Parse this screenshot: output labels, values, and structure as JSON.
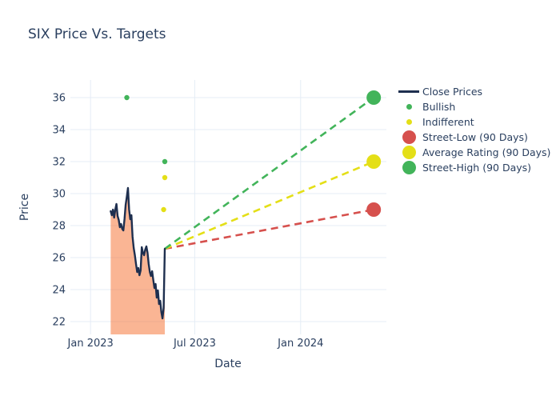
{
  "page": {
    "title": "SIX Price Vs. Targets"
  },
  "colors": {
    "text": "#2a3f5f",
    "grid": "#e5ecf6",
    "close_line": "#1e2f4f",
    "close_fill": "rgba(246,120,60,0.55)",
    "bullish_green": "#42b45a",
    "indifferent_yellow": "#e4df17",
    "street_low_red": "#d6504d",
    "background": "#ffffff"
  },
  "legend": {
    "items": [
      {
        "label": "Close Prices",
        "swatch": "line",
        "color": "#1e2f4f"
      },
      {
        "label": "Bullish",
        "swatch": "dot",
        "color": "#42b45a"
      },
      {
        "label": "Indifferent",
        "swatch": "dot",
        "color": "#e4df17"
      },
      {
        "label": "Street-Low (90 Days)",
        "swatch": "circle",
        "color": "#d6504d"
      },
      {
        "label": "Average Rating (90 Days)",
        "swatch": "circle",
        "color": "#e4df17"
      },
      {
        "label": "Street-High (90 Days)",
        "swatch": "circle",
        "color": "#42b45a"
      }
    ]
  },
  "chart_data": {
    "type": "line",
    "title": "SIX Price Vs. Targets",
    "xlabel": "Date",
    "ylabel": "Price",
    "xlim": [
      "2022-11-27",
      "2024-05-29"
    ],
    "ylim": [
      21.2,
      37.1
    ],
    "grid": true,
    "legend_position": "right",
    "xticks": [
      {
        "date": "2023-01-01",
        "label": "Jan 2023"
      },
      {
        "date": "2023-07-01",
        "label": "Jul 2023"
      },
      {
        "date": "2024-01-01",
        "label": "Jan 2024"
      }
    ],
    "yticks": [
      22,
      24,
      26,
      28,
      30,
      32,
      34,
      36
    ],
    "series": [
      {
        "name": "Close Prices",
        "type": "line",
        "color": "#1e2f4f",
        "fill": "tozeroy",
        "fill_color": "rgba(246,120,60,0.55)",
        "width": 2.4,
        "x": [
          "2023-02-05",
          "2023-02-07",
          "2023-02-09",
          "2023-02-11",
          "2023-02-13",
          "2023-02-15",
          "2023-02-17",
          "2023-02-19",
          "2023-02-21",
          "2023-02-23",
          "2023-02-25",
          "2023-02-27",
          "2023-03-01",
          "2023-03-03",
          "2023-03-05",
          "2023-03-07",
          "2023-03-09",
          "2023-03-11",
          "2023-03-13",
          "2023-03-15",
          "2023-03-17",
          "2023-03-19",
          "2023-03-21",
          "2023-03-23",
          "2023-03-25",
          "2023-03-27",
          "2023-03-29",
          "2023-03-31",
          "2023-04-02",
          "2023-04-04",
          "2023-04-06",
          "2023-04-08",
          "2023-04-10",
          "2023-04-12",
          "2023-04-14",
          "2023-04-16",
          "2023-04-18",
          "2023-04-20",
          "2023-04-22",
          "2023-04-24",
          "2023-04-26",
          "2023-04-28",
          "2023-04-30",
          "2023-05-02",
          "2023-05-04",
          "2023-05-06",
          "2023-05-08",
          "2023-05-10"
        ],
        "y": [
          28.9,
          28.65,
          29.0,
          28.5,
          29.0,
          29.35,
          28.6,
          28.35,
          27.9,
          28.1,
          27.8,
          27.7,
          28.4,
          29.3,
          29.8,
          30.35,
          29.0,
          28.4,
          28.65,
          27.3,
          26.6,
          26.15,
          25.6,
          25.1,
          25.35,
          24.9,
          25.2,
          26.65,
          26.3,
          26.15,
          26.5,
          26.7,
          26.3,
          25.6,
          25.1,
          24.85,
          25.15,
          24.6,
          24.1,
          24.35,
          23.5,
          23.95,
          23.1,
          23.3,
          22.6,
          22.2,
          22.85,
          26.55
        ]
      },
      {
        "name": "Bullish",
        "type": "scatter",
        "color": "#42b45a",
        "size": 6.5,
        "x": [
          "2023-03-05",
          "2023-05-10"
        ],
        "y": [
          36,
          32
        ]
      },
      {
        "name": "Indifferent",
        "type": "scatter",
        "color": "#e4df17",
        "size": 6.5,
        "x": [
          "2023-05-08",
          "2023-05-10"
        ],
        "y": [
          29,
          31
        ]
      },
      {
        "name": "Street-Low (90 Days)",
        "type": "target",
        "color": "#d6504d",
        "size": 18,
        "x": [
          "2023-05-10",
          "2024-05-07"
        ],
        "y": [
          26.55,
          29
        ]
      },
      {
        "name": "Average Rating (90 Days)",
        "type": "target",
        "color": "#e4df17",
        "size": 18,
        "x": [
          "2023-05-10",
          "2024-05-07"
        ],
        "y": [
          26.55,
          32
        ]
      },
      {
        "name": "Street-High (90 Days)",
        "type": "target",
        "color": "#42b45a",
        "size": 18,
        "x": [
          "2023-05-10",
          "2024-05-07"
        ],
        "y": [
          26.55,
          36
        ]
      }
    ]
  }
}
